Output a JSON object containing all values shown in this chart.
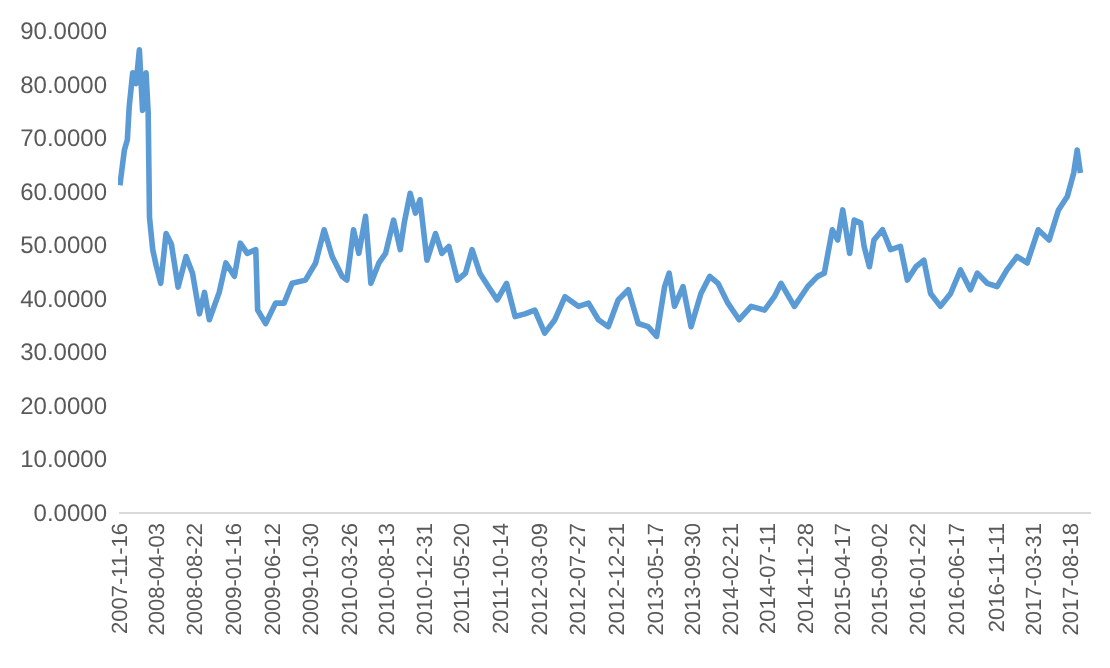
{
  "chart_data": {
    "type": "line",
    "x": [
      "2007-11-16",
      "2007-12-03",
      "2007-12-14",
      "2007-12-21",
      "2008-01-03",
      "2008-01-16",
      "2008-01-28",
      "2008-02-09",
      "2008-02-22",
      "2008-03-01",
      "2008-03-06",
      "2008-03-18",
      "2008-03-31",
      "2008-04-17",
      "2008-05-07",
      "2008-05-27",
      "2008-06-21",
      "2008-07-21",
      "2008-08-14",
      "2008-09-09",
      "2008-09-28",
      "2008-10-16",
      "2008-11-22",
      "2008-12-17",
      "2009-01-18",
      "2009-02-09",
      "2009-03-07",
      "2009-04-08",
      "2009-04-15",
      "2009-05-15",
      "2009-06-21",
      "2009-07-23",
      "2009-08-22",
      "2009-10-11",
      "2009-11-18",
      "2009-12-20",
      "2010-01-19",
      "2010-02-25",
      "2010-03-15",
      "2010-04-09",
      "2010-04-29",
      "2010-05-24",
      "2010-06-13",
      "2010-07-13",
      "2010-08-07",
      "2010-09-06",
      "2010-10-01",
      "2010-10-16",
      "2010-11-07",
      "2010-11-27",
      "2010-12-14",
      "2011-01-09",
      "2011-02-10",
      "2011-03-06",
      "2011-04-01",
      "2011-05-03",
      "2011-06-02",
      "2011-06-27",
      "2011-07-26",
      "2011-08-28",
      "2011-09-29",
      "2011-11-03",
      "2011-12-05",
      "2012-01-11",
      "2012-02-17",
      "2012-03-25",
      "2012-05-02",
      "2012-06-09",
      "2012-07-29",
      "2012-09-05",
      "2012-10-12",
      "2012-11-18",
      "2012-12-25",
      "2013-02-01",
      "2013-03-10",
      "2013-04-16",
      "2013-05-18",
      "2013-06-17",
      "2013-07-04",
      "2013-07-24",
      "2013-08-25",
      "2013-09-24",
      "2013-10-31",
      "2013-12-03",
      "2014-01-03",
      "2014-02-09",
      "2014-03-23",
      "2014-05-07",
      "2014-06-26",
      "2014-08-02",
      "2014-08-27",
      "2014-10-16",
      "2014-12-05",
      "2015-01-11",
      "2015-02-05",
      "2015-03-07",
      "2015-03-27",
      "2015-04-15",
      "2015-05-11",
      "2015-05-28",
      "2015-06-21",
      "2015-07-04",
      "2015-07-24",
      "2015-08-10",
      "2015-09-11",
      "2015-10-11",
      "2015-11-17",
      "2015-12-13",
      "2016-01-14",
      "2016-02-13",
      "2016-03-09",
      "2016-04-15",
      "2016-05-23",
      "2016-06-29",
      "2016-08-05",
      "2016-08-31",
      "2016-10-07",
      "2016-11-13",
      "2016-12-20",
      "2017-01-27",
      "2017-03-06",
      "2017-04-16",
      "2017-05-27",
      "2017-07-01",
      "2017-08-03",
      "2017-08-27",
      "2017-09-09",
      "2017-09-21"
    ],
    "series": [
      {
        "color": "#5b9bd5",
        "values": [
          61,
          67.6,
          69.5,
          75.7,
          82,
          80,
          86.3,
          75,
          82,
          74.5,
          55,
          49,
          46,
          42.7,
          52,
          50,
          42,
          47.7,
          44.6,
          37,
          41,
          35.9,
          41,
          46.5,
          44,
          50.2,
          48.3,
          49,
          37.7,
          35.2,
          39,
          39,
          42.7,
          43.3,
          46.5,
          52.7,
          47.7,
          44,
          43.3,
          52.7,
          48.3,
          55.2,
          42.7,
          46.5,
          48.3,
          54.5,
          49,
          54,
          59.5,
          55.8,
          58.3,
          47,
          52,
          48.3,
          49.6,
          43.3,
          44.6,
          49,
          44.6,
          42,
          39.6,
          42.7,
          36.5,
          37,
          37.7,
          33.4,
          35.9,
          40.2,
          38.4,
          39,
          35.9,
          34.6,
          39.6,
          41.5,
          35.2,
          34.6,
          32.8,
          42.1,
          44.6,
          38.4,
          42.1,
          34.6,
          40.8,
          44,
          42.7,
          39,
          35.9,
          38.4,
          37.7,
          40.2,
          42.7,
          38.4,
          42.1,
          44,
          44.6,
          52.7,
          50.8,
          56.4,
          48.3,
          54.5,
          54,
          49.6,
          45.8,
          50.8,
          52.7,
          49,
          49.6,
          43.3,
          45.8,
          47,
          40.8,
          38.4,
          40.8,
          45.2,
          41.5,
          44.6,
          42.7,
          42.1,
          45.2,
          47.7,
          46.5,
          52.7,
          50.8,
          56.4,
          58.9,
          63.3,
          67.6,
          63.3
        ]
      }
    ],
    "xlim": [
      "2007-11-09",
      "2017-10-27"
    ],
    "xticks": [
      "2007-11-16",
      "2008-04-03",
      "2008-08-22",
      "2009-01-16",
      "2009-06-12",
      "2009-10-30",
      "2010-03-26",
      "2010-08-13",
      "2010-12-31",
      "2011-05-20",
      "2011-10-14",
      "2012-03-09",
      "2012-07-27",
      "2012-12-21",
      "2013-05-17",
      "2013-09-30",
      "2014-02-21",
      "2014-07-11",
      "2014-11-28",
      "2015-04-17",
      "2015-09-02",
      "2016-01-22",
      "2016-06-17",
      "2016-11-11",
      "2017-03-31",
      "2017-08-18"
    ],
    "ylim": [
      0,
      90
    ],
    "yticks": [
      {
        "value": 0,
        "label": "0.0000"
      },
      {
        "value": 10,
        "label": "10.0000"
      },
      {
        "value": 20,
        "label": "20.0000"
      },
      {
        "value": 30,
        "label": "30.0000"
      },
      {
        "value": 40,
        "label": "40.0000"
      },
      {
        "value": 50,
        "label": "50.0000"
      },
      {
        "value": 60,
        "label": "60.0000"
      },
      {
        "value": 70,
        "label": "70.0000"
      },
      {
        "value": 80,
        "label": "80.0000"
      },
      {
        "value": 90,
        "label": "90.0000"
      }
    ]
  }
}
